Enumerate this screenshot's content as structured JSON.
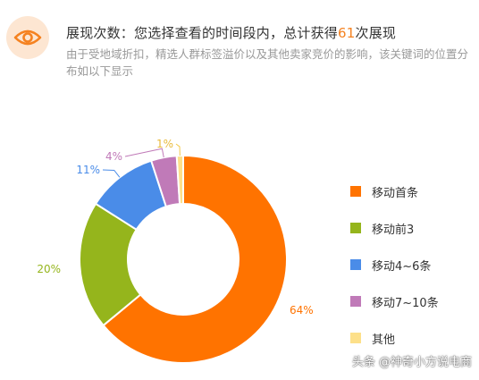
{
  "header": {
    "title_prefix": "展现次数：您选择查看的时间段内，总计获得",
    "title_count": "61",
    "title_suffix": "次展现",
    "description": "由于受地域折扣，精选人群标签溢价以及其他卖家竞价的影响，该关键词的位置分布如以下显示",
    "icon": "eye-icon",
    "accent_color": "#f58220"
  },
  "chart_data": {
    "type": "pie",
    "variant": "donut",
    "categories": [
      "移动首条",
      "移动前3",
      "移动4~6条",
      "移动7~10条",
      "其他"
    ],
    "values": [
      64,
      20,
      11,
      4,
      1
    ],
    "labels": [
      "64%",
      "20%",
      "11%",
      "4%",
      "1%"
    ],
    "colors": [
      "#ff7300",
      "#95b51c",
      "#4a8ce8",
      "#c07ab8",
      "#fde08a"
    ],
    "legend_position": "right"
  },
  "watermark": "头条 @神奇小方说电商"
}
